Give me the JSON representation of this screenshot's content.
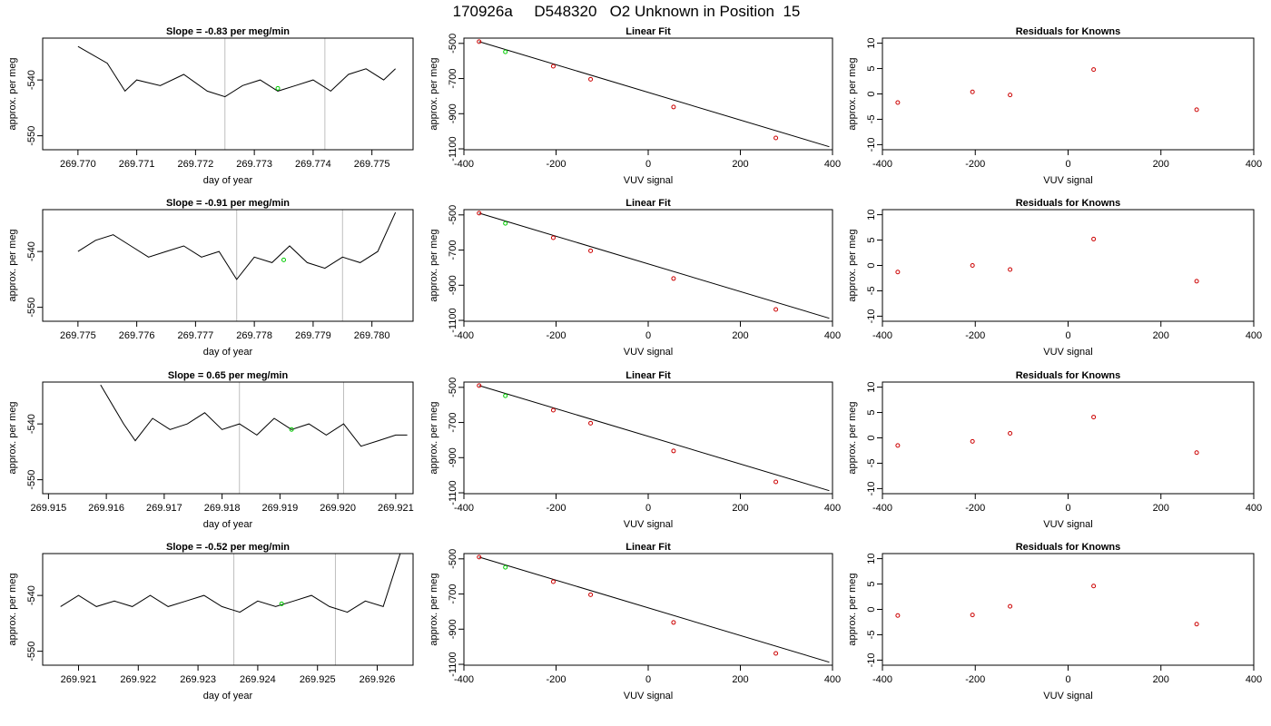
{
  "figure_title": "170926a     D548320   O2 Unknown in Position  15",
  "chart_data": [
    {
      "type": "line",
      "row": 0,
      "col": 0,
      "title": "Slope =  -0.83  per meg/min",
      "xlabel": "day of year",
      "ylabel": "approx. per meg",
      "xlim": [
        269.7694,
        269.7757
      ],
      "ylim": [
        -552.5,
        -532.5
      ],
      "xticks": [
        269.77,
        269.771,
        269.772,
        269.773,
        269.774,
        269.775
      ],
      "xtick_labels": [
        "269.770",
        "269.771",
        "269.772",
        "269.773",
        "269.774",
        "269.775"
      ],
      "yticks": [
        -540,
        -550
      ],
      "ytick_labels": [
        "-540",
        "-550"
      ],
      "x": [
        269.77,
        269.7705,
        269.7708,
        269.771,
        269.7714,
        269.7718,
        269.7722,
        269.7725,
        269.7728,
        269.7731,
        269.7734,
        269.7737,
        269.774,
        269.7743,
        269.7746,
        269.7749,
        269.7752,
        269.7754
      ],
      "y": [
        -534,
        -537,
        -542,
        -540,
        -541,
        -539,
        -542,
        -543,
        -541,
        -540,
        -542,
        -541,
        -540,
        -542,
        -539,
        -538,
        -540,
        -538
      ],
      "vlines": [
        269.7725,
        269.7742
      ],
      "marker": {
        "x": 269.7734,
        "y": -541.5
      }
    },
    {
      "type": "scatter",
      "row": 0,
      "col": 1,
      "title": "Linear Fit",
      "xlabel": "VUV signal",
      "ylabel": "approx. per meg",
      "xlim": [
        -400,
        400
      ],
      "ylim": [
        -1105,
        -470
      ],
      "xticks": [
        -400,
        -200,
        0,
        200,
        400
      ],
      "xtick_labels": [
        "-400",
        "-200",
        "0",
        "200",
        "400"
      ],
      "yticks": [
        -500,
        -700,
        -900,
        -1100
      ],
      "ytick_labels": [
        "-500",
        "-700",
        "-900",
        "-1100"
      ],
      "x": [
        -367,
        -206,
        -125,
        55,
        277
      ],
      "y": [
        -490,
        -630,
        -704,
        -862,
        -1038
      ],
      "unknown": {
        "x": -310,
        "y": -548
      },
      "fit_line": {
        "x": [
          -367,
          393
        ],
        "y": [
          -490,
          -1088
        ]
      }
    },
    {
      "type": "scatter",
      "row": 0,
      "col": 2,
      "title": "Residuals for Knowns",
      "xlabel": "VUV signal",
      "ylabel": "approx. per meg",
      "xlim": [
        -400,
        400
      ],
      "ylim": [
        -11,
        11
      ],
      "xticks": [
        -400,
        -200,
        0,
        200,
        400
      ],
      "xtick_labels": [
        "-400",
        "-200",
        "0",
        "200",
        "400"
      ],
      "yticks": [
        10,
        5,
        0,
        -5,
        -10
      ],
      "ytick_labels": [
        "10",
        "5",
        "0",
        "-5",
        "-10"
      ],
      "x": [
        -367,
        -206,
        -125,
        55,
        277
      ],
      "y": [
        -1.7,
        0.4,
        -0.2,
        4.8,
        -3.1
      ]
    },
    {
      "type": "line",
      "row": 1,
      "col": 0,
      "title": "Slope =  -0.91  per meg/min",
      "xlabel": "day of year",
      "ylabel": "approx. per meg",
      "xlim": [
        269.7744,
        269.7807
      ],
      "ylim": [
        -552.5,
        -532.5
      ],
      "xticks": [
        269.775,
        269.776,
        269.777,
        269.778,
        269.779,
        269.78
      ],
      "xtick_labels": [
        "269.775",
        "269.776",
        "269.777",
        "269.778",
        "269.779",
        "269.780"
      ],
      "yticks": [
        -540,
        -550
      ],
      "ytick_labels": [
        "-540",
        "-550"
      ],
      "x": [
        269.775,
        269.7753,
        269.7756,
        269.7759,
        269.7762,
        269.7765,
        269.7768,
        269.7771,
        269.7774,
        269.7777,
        269.778,
        269.7783,
        269.7786,
        269.7789,
        269.7792,
        269.7795,
        269.7798,
        269.7801,
        269.7804
      ],
      "y": [
        -540,
        -538,
        -537,
        -539,
        -541,
        -540,
        -539,
        -541,
        -540,
        -545,
        -541,
        -542,
        -539,
        -542,
        -543,
        -541,
        -542,
        -540,
        -533
      ],
      "vlines": [
        269.7777,
        269.7795
      ],
      "marker": {
        "x": 269.7785,
        "y": -541.5
      }
    },
    {
      "type": "scatter",
      "row": 1,
      "col": 1,
      "title": "Linear Fit",
      "xlabel": "VUV signal",
      "ylabel": "approx. per meg",
      "xlim": [
        -400,
        400
      ],
      "ylim": [
        -1105,
        -470
      ],
      "xticks": [
        -400,
        -200,
        0,
        200,
        400
      ],
      "xtick_labels": [
        "-400",
        "-200",
        "0",
        "200",
        "400"
      ],
      "yticks": [
        -500,
        -700,
        -900,
        -1100
      ],
      "ytick_labels": [
        "-500",
        "-700",
        "-900",
        "-1100"
      ],
      "x": [
        -367,
        -206,
        -125,
        55,
        277
      ],
      "y": [
        -490,
        -630,
        -704,
        -862,
        -1038
      ],
      "unknown": {
        "x": -310,
        "y": -548
      },
      "fit_line": {
        "x": [
          -367,
          393
        ],
        "y": [
          -490,
          -1088
        ]
      }
    },
    {
      "type": "scatter",
      "row": 1,
      "col": 2,
      "title": "Residuals for Knowns",
      "xlabel": "VUV signal",
      "ylabel": "approx. per meg",
      "xlim": [
        -400,
        400
      ],
      "ylim": [
        -11,
        11
      ],
      "xticks": [
        -400,
        -200,
        0,
        200,
        400
      ],
      "xtick_labels": [
        "-400",
        "-200",
        "0",
        "200",
        "400"
      ],
      "yticks": [
        10,
        5,
        0,
        -5,
        -10
      ],
      "ytick_labels": [
        "10",
        "5",
        "0",
        "-5",
        "-10"
      ],
      "x": [
        -367,
        -206,
        -125,
        55,
        277
      ],
      "y": [
        -1.3,
        0.0,
        -0.8,
        5.2,
        -3.1
      ]
    },
    {
      "type": "line",
      "row": 2,
      "col": 0,
      "title": "Slope =  0.65  per meg/min",
      "xlabel": "day of year",
      "ylabel": "approx. per meg",
      "xlim": [
        269.9149,
        269.9213
      ],
      "ylim": [
        -552.5,
        -532.5
      ],
      "xticks": [
        269.915,
        269.916,
        269.917,
        269.918,
        269.919,
        269.92,
        269.921
      ],
      "xtick_labels": [
        "269.915",
        "269.916",
        "269.917",
        "269.918",
        "269.919",
        "269.920",
        "269.921"
      ],
      "yticks": [
        -540,
        -550
      ],
      "ytick_labels": [
        "-540",
        "-550"
      ],
      "x": [
        269.9159,
        269.9163,
        269.9165,
        269.9168,
        269.9171,
        269.9174,
        269.9177,
        269.918,
        269.9183,
        269.9186,
        269.9189,
        269.9192,
        269.9195,
        269.9198,
        269.9201,
        269.9204,
        269.9207,
        269.921,
        269.9212
      ],
      "y": [
        -533,
        -540,
        -543,
        -539,
        -541,
        -540,
        -538,
        -541,
        -540,
        -542,
        -539,
        -541,
        -540,
        -542,
        -540,
        -544,
        -543,
        -542,
        -542
      ],
      "vlines": [
        269.9183,
        269.9201
      ],
      "marker": {
        "x": 269.9192,
        "y": -541.0
      }
    },
    {
      "type": "scatter",
      "row": 2,
      "col": 1,
      "title": "Linear Fit",
      "xlabel": "VUV signal",
      "ylabel": "approx. per meg",
      "xlim": [
        -400,
        400
      ],
      "ylim": [
        -1105,
        -470
      ],
      "xticks": [
        -400,
        -200,
        0,
        200,
        400
      ],
      "xtick_labels": [
        "-400",
        "-200",
        "0",
        "200",
        "400"
      ],
      "yticks": [
        -500,
        -700,
        -900,
        -1100
      ],
      "ytick_labels": [
        "-500",
        "-700",
        "-900",
        "-1100"
      ],
      "x": [
        -367,
        -206,
        -125,
        55,
        277
      ],
      "y": [
        -490,
        -630,
        -704,
        -862,
        -1038
      ],
      "unknown": {
        "x": -310,
        "y": -548
      },
      "fit_line": {
        "x": [
          -367,
          393
        ],
        "y": [
          -490,
          -1088
        ]
      }
    },
    {
      "type": "scatter",
      "row": 2,
      "col": 2,
      "title": "Residuals for Knowns",
      "xlabel": "VUV signal",
      "ylabel": "approx. per meg",
      "xlim": [
        -400,
        400
      ],
      "ylim": [
        -11,
        11
      ],
      "xticks": [
        -400,
        -200,
        0,
        200,
        400
      ],
      "xtick_labels": [
        "-400",
        "-200",
        "0",
        "200",
        "400"
      ],
      "yticks": [
        10,
        5,
        0,
        -5,
        -10
      ],
      "ytick_labels": [
        "10",
        "5",
        "0",
        "-5",
        "-10"
      ],
      "x": [
        -367,
        -206,
        -125,
        55,
        277
      ],
      "y": [
        -1.5,
        -0.7,
        0.9,
        4.1,
        -2.9
      ]
    },
    {
      "type": "line",
      "row": 3,
      "col": 0,
      "title": "Slope =  -0.52  per meg/min",
      "xlabel": "day of year",
      "ylabel": "approx. per meg",
      "xlim": [
        269.9204,
        269.9266
      ],
      "ylim": [
        -552.5,
        -532.5
      ],
      "xticks": [
        269.921,
        269.922,
        269.923,
        269.924,
        269.925,
        269.926
      ],
      "xtick_labels": [
        "269.921",
        "269.922",
        "269.923",
        "269.924",
        "269.925",
        "269.926"
      ],
      "yticks": [
        -540,
        -550
      ],
      "ytick_labels": [
        "-540",
        "-550"
      ],
      "x": [
        269.9207,
        269.921,
        269.9213,
        269.9216,
        269.9219,
        269.9222,
        269.9225,
        269.9228,
        269.9231,
        269.9234,
        269.9237,
        269.924,
        269.9243,
        269.9246,
        269.9249,
        269.9252,
        269.9255,
        269.9258,
        269.9261,
        269.9264
      ],
      "y": [
        -542,
        -540,
        -542,
        -541,
        -542,
        -540,
        -542,
        -541,
        -540,
        -542,
        -543,
        -541,
        -542,
        -541,
        -540,
        -542,
        -543,
        -541,
        -542,
        -532
      ],
      "vlines": [
        269.9236,
        269.9253
      ],
      "marker": {
        "x": 269.9244,
        "y": -541.5
      }
    },
    {
      "type": "scatter",
      "row": 3,
      "col": 1,
      "title": "Linear Fit",
      "xlabel": "VUV signal",
      "ylabel": "approx. per meg",
      "xlim": [
        -400,
        400
      ],
      "ylim": [
        -1105,
        -470
      ],
      "xticks": [
        -400,
        -200,
        0,
        200,
        400
      ],
      "xtick_labels": [
        "-400",
        "-200",
        "0",
        "200",
        "400"
      ],
      "yticks": [
        -500,
        -700,
        -900,
        -1100
      ],
      "ytick_labels": [
        "-500",
        "-700",
        "-900",
        "-1100"
      ],
      "x": [
        -367,
        -206,
        -125,
        55,
        277
      ],
      "y": [
        -490,
        -630,
        -704,
        -862,
        -1038
      ],
      "unknown": {
        "x": -310,
        "y": -548
      },
      "fit_line": {
        "x": [
          -367,
          393
        ],
        "y": [
          -490,
          -1088
        ]
      }
    },
    {
      "type": "scatter",
      "row": 3,
      "col": 2,
      "title": "Residuals for Knowns",
      "xlabel": "VUV signal",
      "ylabel": "approx. per meg",
      "xlim": [
        -400,
        400
      ],
      "ylim": [
        -11,
        11
      ],
      "xticks": [
        -400,
        -200,
        0,
        200,
        400
      ],
      "xtick_labels": [
        "-400",
        "-200",
        "0",
        "200",
        "400"
      ],
      "yticks": [
        10,
        5,
        0,
        -5,
        -10
      ],
      "ytick_labels": [
        "10",
        "5",
        "0",
        "-5",
        "-10"
      ],
      "x": [
        -367,
        -206,
        -125,
        55,
        277
      ],
      "y": [
        -1.2,
        -1.1,
        0.6,
        4.6,
        -2.9
      ]
    }
  ],
  "colors": {
    "axis": "#000000",
    "series_line": "#000000",
    "vline": "#bebebe",
    "unknown_point": "#00cc00",
    "known_point": "#cc0000",
    "fit_line": "#000000"
  }
}
